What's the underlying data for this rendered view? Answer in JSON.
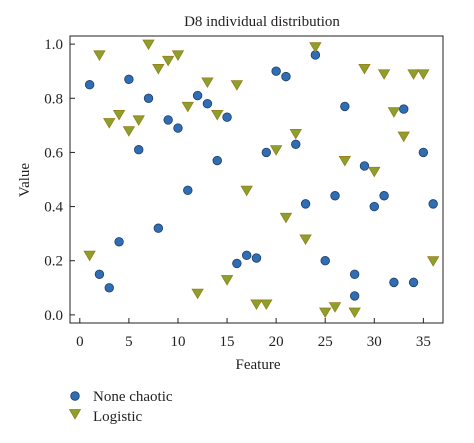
{
  "chart_data": {
    "type": "scatter",
    "title": "D8 individual distribution",
    "xlabel": "Feature",
    "ylabel": "Value",
    "xlim": [
      -1,
      37
    ],
    "ylim": [
      -0.03,
      1.03
    ],
    "xticks": [
      0,
      5,
      10,
      15,
      20,
      25,
      30,
      35
    ],
    "yticks": [
      0.0,
      0.2,
      0.4,
      0.6,
      0.8,
      1.0
    ],
    "xtick_labels": [
      "0",
      "5",
      "10",
      "15",
      "20",
      "25",
      "30",
      "35"
    ],
    "ytick_labels": [
      "0.0",
      "0.2",
      "0.4",
      "0.6",
      "0.8",
      "1.0"
    ],
    "grid": false,
    "legend_position": "bottom-left, below plot",
    "series": [
      {
        "name": "None chaotic",
        "marker": "circle",
        "color": "#2f6db5",
        "edge_color": "#1f3e66",
        "points": [
          [
            1,
            0.85
          ],
          [
            2,
            0.15
          ],
          [
            3,
            0.1
          ],
          [
            4,
            0.27
          ],
          [
            5,
            0.87
          ],
          [
            6,
            0.61
          ],
          [
            7,
            0.8
          ],
          [
            8,
            0.32
          ],
          [
            9,
            0.72
          ],
          [
            10,
            0.69
          ],
          [
            11,
            0.46
          ],
          [
            12,
            0.81
          ],
          [
            13,
            0.78
          ],
          [
            14,
            0.57
          ],
          [
            15,
            0.73
          ],
          [
            16,
            0.19
          ],
          [
            17,
            0.22
          ],
          [
            18,
            0.21
          ],
          [
            19,
            0.6
          ],
          [
            20,
            0.9
          ],
          [
            21,
            0.88
          ],
          [
            22,
            0.63
          ],
          [
            23,
            0.41
          ],
          [
            24,
            0.96
          ],
          [
            25,
            0.2
          ],
          [
            26,
            0.44
          ],
          [
            27,
            0.77
          ],
          [
            28,
            0.15
          ],
          [
            28,
            0.07
          ],
          [
            29,
            0.55
          ],
          [
            30,
            0.4
          ],
          [
            31,
            0.44
          ],
          [
            32,
            0.12
          ],
          [
            33,
            0.76
          ],
          [
            34,
            0.12
          ],
          [
            35,
            0.6
          ],
          [
            36,
            0.41
          ]
        ]
      },
      {
        "name": "Logistic",
        "marker": "triangle-down",
        "color": "#8aa12c",
        "edge_color": "#9c7b1c",
        "points": [
          [
            1,
            0.22
          ],
          [
            2,
            0.96
          ],
          [
            3,
            0.71
          ],
          [
            4,
            0.74
          ],
          [
            5,
            0.68
          ],
          [
            6,
            0.72
          ],
          [
            7,
            1.0
          ],
          [
            8,
            0.91
          ],
          [
            9,
            0.94
          ],
          [
            10,
            0.96
          ],
          [
            11,
            0.77
          ],
          [
            12,
            0.08
          ],
          [
            13,
            0.86
          ],
          [
            14,
            0.74
          ],
          [
            15,
            0.13
          ],
          [
            16,
            0.85
          ],
          [
            17,
            0.46
          ],
          [
            18,
            0.04
          ],
          [
            19,
            0.04
          ],
          [
            20,
            0.61
          ],
          [
            21,
            0.36
          ],
          [
            22,
            0.67
          ],
          [
            23,
            0.28
          ],
          [
            24,
            0.99
          ],
          [
            25,
            0.01
          ],
          [
            26,
            0.03
          ],
          [
            27,
            0.57
          ],
          [
            28,
            0.01
          ],
          [
            29,
            0.91
          ],
          [
            30,
            0.53
          ],
          [
            31,
            0.89
          ],
          [
            32,
            0.75
          ],
          [
            33,
            0.66
          ],
          [
            34,
            0.89
          ],
          [
            35,
            0.89
          ],
          [
            36,
            0.2
          ]
        ]
      }
    ]
  }
}
